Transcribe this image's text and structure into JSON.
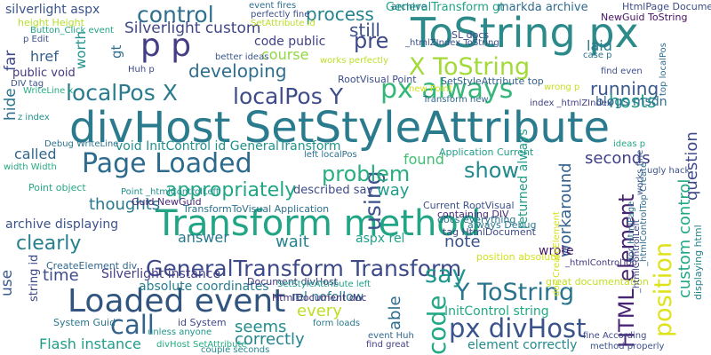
{
  "words": [
    {
      "text": "divHost SetStyleAttribute",
      "color": "#2a7b8e"
    },
    {
      "text": "ToString px",
      "color": "#2c8a8a"
    },
    {
      "text": "Transform method",
      "color": "#21a585"
    },
    {
      "text": "Loaded event",
      "color": "#31557f"
    },
    {
      "text": "Page Loaded",
      "color": "#2d6b8e"
    },
    {
      "text": "GeneralTransform Transform",
      "color": "#3d4a89"
    },
    {
      "text": "X ToString",
      "color": "#a2da37"
    },
    {
      "text": "Y ToString",
      "color": "#2a758e"
    },
    {
      "text": "px divHost",
      "color": "#3a538b"
    },
    {
      "text": "localPos X",
      "color": "#2b7b8e"
    },
    {
      "text": "localPos Y",
      "color": "#3e4c8a"
    },
    {
      "text": "p p",
      "color": "#433e85"
    },
    {
      "text": "control",
      "color": "#2d708e"
    },
    {
      "text": "process",
      "color": "#26828e"
    },
    {
      "text": "using",
      "color": "#3b518b"
    },
    {
      "text": "position",
      "color": "#dde318"
    },
    {
      "text": "code",
      "color": "#22a884"
    },
    {
      "text": "HTML element",
      "color": "#482475"
    },
    {
      "text": "call",
      "color": "#33638d"
    },
    {
      "text": "say",
      "color": "#1f968b"
    },
    {
      "text": "px always",
      "color": "#35b779"
    },
    {
      "text": "show",
      "color": "#238a8d"
    },
    {
      "text": "problem",
      "color": "#29af7f"
    },
    {
      "text": "appropriately",
      "color": "#21a685"
    },
    {
      "text": "clearly",
      "color": "#277f8e"
    },
    {
      "text": "Silverlight custom",
      "color": "#3f4788"
    },
    {
      "text": "pre",
      "color": "#3e4a89"
    },
    {
      "text": "still",
      "color": "#3b528b"
    },
    {
      "text": "developing",
      "color": "#2e6e8e"
    },
    {
      "text": "running",
      "color": "#38598c"
    },
    {
      "text": "hosts",
      "color": "#1f9a8a"
    },
    {
      "text": "seconds",
      "color": "#424086"
    },
    {
      "text": "question",
      "color": "#3f4889"
    },
    {
      "text": "custom control",
      "color": "#22a785"
    },
    {
      "text": "workaround",
      "color": "#34618d"
    },
    {
      "text": "thoughts",
      "color": "#29798e"
    },
    {
      "text": "wait",
      "color": "#26828e"
    },
    {
      "text": "found",
      "color": "#40bd72"
    },
    {
      "text": "way",
      "color": "#1f9e89"
    },
    {
      "text": "note",
      "color": "#3a538b"
    },
    {
      "text": "answer",
      "color": "#2a788e"
    },
    {
      "text": "time",
      "color": "#3d4d8a"
    },
    {
      "text": "seems",
      "color": "#228d8d"
    },
    {
      "text": "correctly",
      "color": "#25848e"
    },
    {
      "text": "every",
      "color": "#bddf26"
    },
    {
      "text": "able",
      "color": "#2e6d8e"
    },
    {
      "text": "Flash instance",
      "color": "#1f9e89"
    },
    {
      "text": "absolute coordinates",
      "color": "#277e8e"
    },
    {
      "text": "Silverlight instance",
      "color": "#433d84"
    },
    {
      "text": "called",
      "color": "#31678e"
    },
    {
      "text": "href",
      "color": "#345f8d"
    },
    {
      "text": "course",
      "color": "#90d743"
    },
    {
      "text": "laid",
      "color": "#2a788e"
    },
    {
      "text": "hide",
      "color": "#2c728e"
    },
    {
      "text": "far",
      "color": "#3e4989"
    },
    {
      "text": "use",
      "color": "#38588c"
    },
    {
      "text": "worth",
      "color": "#21918c"
    },
    {
      "text": "gt",
      "color": "#2f6c8e"
    },
    {
      "text": "wrote",
      "color": "#48196b"
    },
    {
      "text": "silverlight aspx",
      "color": "#3a548c"
    },
    {
      "text": "code public",
      "color": "#424086"
    },
    {
      "text": "void InitControl id GeneralTransform",
      "color": "#20928c"
    },
    {
      "text": "public void",
      "color": "#453781"
    },
    {
      "text": "InitControl string",
      "color": "#23a983"
    },
    {
      "text": "element correctly",
      "color": "#238a8d"
    },
    {
      "text": "archive displaying",
      "color": "#3b528b"
    },
    {
      "text": "blogs msdn",
      "color": "#2e6f8e"
    },
    {
      "text": "returned always",
      "color": "#1f9e89"
    },
    {
      "text": "aspx rel",
      "color": "#1fa088"
    },
    {
      "text": "rel nofollow",
      "color": "#2a768e"
    },
    {
      "text": "described say",
      "color": "#3e4a89"
    },
    {
      "text": "string id",
      "color": "#3e4989"
    },
    {
      "text": "GeneralTransform gt",
      "color": "#20a386"
    },
    {
      "text": "markda archive",
      "color": "#2f6b8e"
    },
    {
      "text": "SL docs",
      "color": "#3f4889"
    },
    {
      "text": "Guid NewGuid",
      "color": "#482576"
    },
    {
      "text": "TransformToVisual Application",
      "color": "#2d708e"
    },
    {
      "text": "RootVisual Point",
      "color": "#3d4e8a"
    },
    {
      "text": "SetStyleAttribute top",
      "color": "#33638d"
    },
    {
      "text": "Point object",
      "color": "#25ab82"
    },
    {
      "text": "archive",
      "color": "#2a788e"
    },
    {
      "text": "displaying html",
      "color": "#25838e"
    },
    {
      "text": "Document divHost",
      "color": "#453781"
    },
    {
      "text": "HtmlDocument doc",
      "color": "#472c7a"
    },
    {
      "text": "id System",
      "color": "#3f4788"
    },
    {
      "text": "System Guid",
      "color": "#2a768e"
    },
    {
      "text": "CreateElement div",
      "color": "#31668e"
    },
    {
      "text": "position absolute",
      "color": "#d2e21b"
    },
    {
      "text": "Application Current",
      "color": "#1f9e89"
    },
    {
      "text": "Current RootVisual",
      "color": "#3b518b"
    },
    {
      "text": "containing DIV",
      "color": "#482878"
    },
    {
      "text": "docs everything",
      "color": "#2b758e"
    },
    {
      "text": "tag HtmlDocument",
      "color": "#3f4889"
    },
    {
      "text": "great documentation",
      "color": "#c2df23"
    },
    {
      "text": "doc CreateElement",
      "color": "#d5e21a"
    },
    {
      "text": "doc HtmlPage",
      "color": "#2e6e8e"
    },
    {
      "text": "always Debug",
      "color": "#2a788e"
    },
    {
      "text": "HtmlPage Document",
      "color": "#3e4c8a"
    },
    {
      "text": "NewGuid ToString",
      "color": "#471164"
    },
    {
      "text": "height Height",
      "color": "#b5de2b"
    },
    {
      "text": "Button_Click event",
      "color": "#20a486"
    },
    {
      "text": "p Edit",
      "color": "#3b528b"
    },
    {
      "text": "event fires",
      "color": "#2c718e"
    },
    {
      "text": "perfectly fine",
      "color": "#3d4e8a"
    },
    {
      "text": "SetAttribute id",
      "color": "#bade28"
    },
    {
      "text": "_htmlZIndex ToString",
      "color": "#3c508b"
    },
    {
      "text": "works perfectly",
      "color": "#bddf26"
    },
    {
      "text": "Huh p",
      "color": "#3e4989"
    },
    {
      "text": "better ideas",
      "color": "#38588c"
    },
    {
      "text": "DIV tag",
      "color": "#3b528b"
    },
    {
      "text": "WriteLine x",
      "color": "#26ad81"
    },
    {
      "text": "z index",
      "color": "#20928c"
    },
    {
      "text": "Debug WriteLine",
      "color": "#2c738e"
    },
    {
      "text": "width Width",
      "color": "#25ab82"
    },
    {
      "text": "Point _htmlControlLeft",
      "color": "#21918c"
    },
    {
      "text": "SetStyleAttribute left",
      "color": "#1fa188"
    },
    {
      "text": "left localPos",
      "color": "#2c728e"
    },
    {
      "text": "new Point",
      "color": "#d0e11c"
    },
    {
      "text": "wrong p",
      "color": "#c8e020"
    },
    {
      "text": "Transform new",
      "color": "#306a8e"
    },
    {
      "text": "index _htmlZIndex",
      "color": "#424186"
    },
    {
      "text": "ideas p",
      "color": "#22a785"
    },
    {
      "text": "ugly hack",
      "color": "#3b528b"
    },
    {
      "text": "find even",
      "color": "#3d4e8a"
    },
    {
      "text": "case p",
      "color": "#2c738e"
    },
    {
      "text": "top localPos",
      "color": "#2f6c8e"
    },
    {
      "text": "_htmlControlTop",
      "color": "#443a83"
    },
    {
      "text": "_htmlControlLeft",
      "color": "#3f4788"
    },
    {
      "text": "_htmlControlTop Create",
      "color": "#2e6d8e"
    },
    {
      "text": "works fine",
      "color": "#38588c"
    },
    {
      "text": "fine According",
      "color": "#3e4989"
    },
    {
      "text": "method properly",
      "color": "#3b528b"
    },
    {
      "text": "find great",
      "color": "#433e85"
    },
    {
      "text": "event Huh",
      "color": "#31678e"
    },
    {
      "text": "form loads",
      "color": "#2a788e"
    },
    {
      "text": "unless anyone",
      "color": "#1f968b"
    },
    {
      "text": "divHost SetAttribute",
      "color": "#25ac82"
    },
    {
      "text": "couple seconds",
      "color": "#23888e"
    }
  ]
}
